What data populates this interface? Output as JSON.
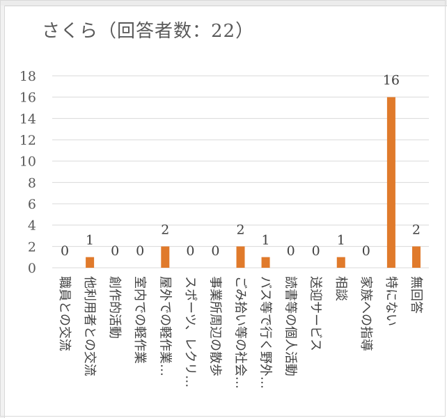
{
  "chart_data": {
    "type": "bar",
    "title": "さくら（回答者数：22）",
    "categories": [
      "職員との交流",
      "他利用者との交流",
      "創作的活動",
      "室内での軽作業",
      "屋外での軽作業…",
      "スポーツ、レクリ…",
      "事業所周辺の散歩",
      "ごみ拾い等の社会…",
      "バス等で行く野外…",
      "読書等の個人活動",
      "送迎サービス",
      "相談",
      "家族への指導",
      "特にない",
      "無回答"
    ],
    "values": [
      0,
      1,
      0,
      0,
      2,
      0,
      0,
      2,
      1,
      0,
      0,
      1,
      0,
      16,
      2
    ],
    "ylim": [
      0,
      18
    ],
    "yticks": [
      "0",
      "2",
      "4",
      "6",
      "8",
      "10",
      "12",
      "14",
      "16",
      "18"
    ],
    "grid": true,
    "legend": "none",
    "bar_color": "#e07a2b",
    "grid_color": "#d9d9d9"
  }
}
